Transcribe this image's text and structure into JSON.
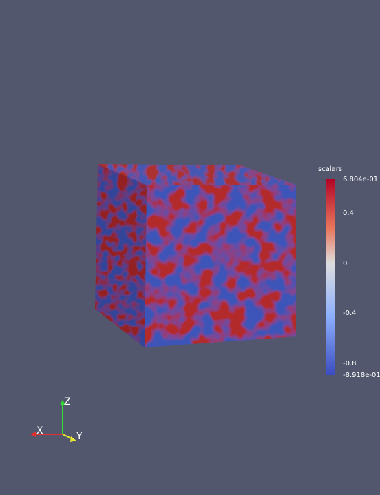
{
  "colorbar": {
    "title": "scalars",
    "max_label": "6.804e-01",
    "min_label": "-8.918e-01",
    "ticks": [
      "0.4",
      "0",
      "-0.4",
      "-0.8"
    ],
    "colors": {
      "high": "#b40426",
      "mid": "#dddddd",
      "low": "#3b4cc0"
    }
  },
  "orientation_axes": {
    "x_label": "X",
    "y_label": "Y",
    "z_label": "Z",
    "colors": {
      "x": "#e03030",
      "y": "#e8e830",
      "z": "#30e030"
    }
  },
  "background_color": "#52576e"
}
